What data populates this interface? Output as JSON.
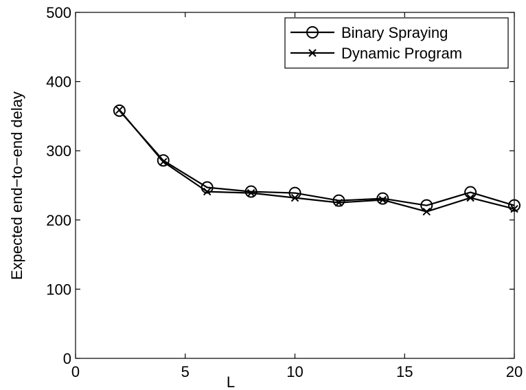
{
  "chart_data": {
    "type": "line",
    "title": "",
    "xlabel": "L",
    "ylabel": "Expected end−to−end delay",
    "xlim": [
      0,
      20
    ],
    "ylim": [
      0,
      500
    ],
    "xticks": [
      0,
      5,
      10,
      15,
      20
    ],
    "yticks": [
      0,
      100,
      200,
      300,
      400,
      500
    ],
    "grid": false,
    "legend_position": "top-right",
    "x": [
      2,
      4,
      6,
      8,
      10,
      12,
      14,
      16,
      18,
      20
    ],
    "series": [
      {
        "name": "Binary Spraying",
        "marker": "circle",
        "color": "#000000",
        "values": [
          358,
          286,
          247,
          241,
          239,
          228,
          231,
          221,
          240,
          221
        ]
      },
      {
        "name": "Dynamic Program",
        "marker": "x",
        "color": "#000000",
        "values": [
          359,
          284,
          241,
          239,
          232,
          225,
          229,
          212,
          232,
          216
        ]
      }
    ]
  }
}
